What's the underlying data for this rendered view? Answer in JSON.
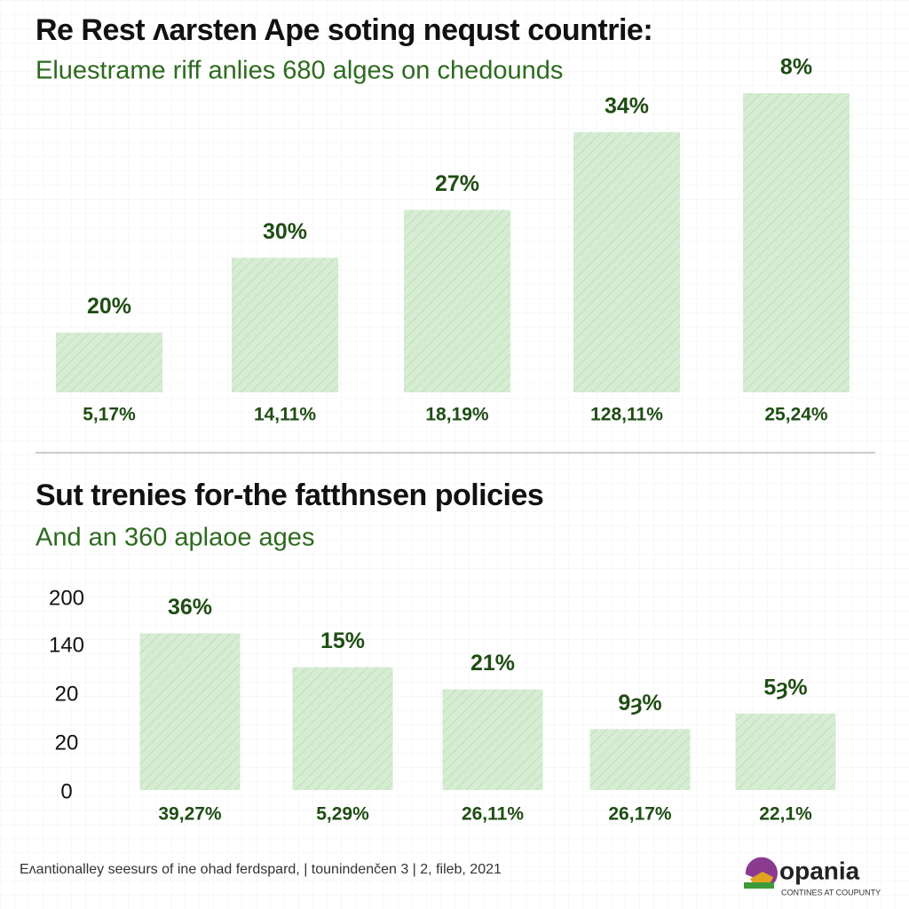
{
  "chart_data": [
    {
      "type": "bar",
      "title": "Re Rest ʌarsten Ape soting nequst countrie:",
      "subtitle": "Eluestrame riff anlies 680 alges on chedounds",
      "categories": [
        "5,17%",
        "14,11%",
        "18,19%",
        "128,11%",
        "25,24%"
      ],
      "annotations": [
        "20%",
        "30%",
        "27%",
        "34%",
        "8%"
      ],
      "values": [
        20,
        45,
        61,
        87,
        100
      ],
      "ylim": [
        0,
        100
      ],
      "color": "#d6edd3"
    },
    {
      "type": "bar",
      "title": "Sut trenies for-the fatthnsen policies",
      "subtitle": "And an 360 aplaoe ages",
      "categories": [
        "39,27%",
        "5,29%",
        "26,11%",
        "26,17%",
        "22,1%"
      ],
      "annotations": [
        "36%",
        "15%",
        "21%",
        "9ȝ%",
        "5ȝ%"
      ],
      "ytick_labels": [
        "200",
        "140",
        "20",
        "20",
        "0"
      ],
      "values": [
        162,
        127,
        104,
        63,
        79
      ],
      "ylim": [
        0,
        200
      ],
      "color": "#d6edd3"
    }
  ],
  "footer": {
    "source": "Eʌantionalley seesurs of ine ohad ferdspard, | tounindenčen 3 | 2, fileb, 2021",
    "logo": "opania",
    "tagline": "CONTINES AT COUPUNTY"
  }
}
